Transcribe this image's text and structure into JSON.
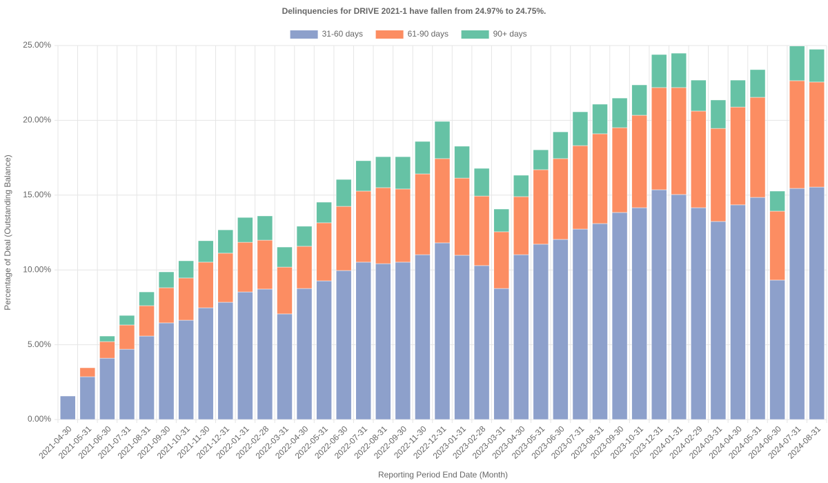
{
  "chart_data": {
    "type": "stacked_bar",
    "title": "Delinquencies for DRIVE 2021-1 have fallen from 24.97% to 24.75%.",
    "x_label": "Reporting Period End Date (Month)",
    "y_label": "Percentage of Deal (Outstanding Balance)",
    "categories": [
      "2021-04-30",
      "2021-05-31",
      "2021-06-30",
      "2021-07-31",
      "2021-08-31",
      "2021-09-30",
      "2021-10-31",
      "2021-11-30",
      "2021-12-31",
      "2022-01-31",
      "2022-02-28",
      "2022-03-31",
      "2022-04-30",
      "2022-05-31",
      "2022-06-30",
      "2022-07-31",
      "2022-08-31",
      "2022-09-30",
      "2022-11-30",
      "2022-12-31",
      "2023-01-31",
      "2023-02-28",
      "2023-03-31",
      "2023-04-30",
      "2023-05-31",
      "2023-06-30",
      "2023-07-31",
      "2023-08-31",
      "2023-09-30",
      "2023-10-31",
      "2023-12-31",
      "2024-01-31",
      "2024-02-29",
      "2024-03-31",
      "2024-04-30",
      "2024-05-31",
      "2024-06-30",
      "2024-07-31",
      "2024-08-31"
    ],
    "series": [
      {
        "name": "31-60 days",
        "color": "#8da0cb",
        "values": [
          1.57,
          2.86,
          4.1,
          4.7,
          5.58,
          6.46,
          6.64,
          7.47,
          7.84,
          8.53,
          8.72,
          7.06,
          8.76,
          9.27,
          9.96,
          10.52,
          10.42,
          10.52,
          11.02,
          11.81,
          10.98,
          10.29,
          8.76,
          11.02,
          11.72,
          12.04,
          12.73,
          13.1,
          13.84,
          14.16,
          15.36,
          15.04,
          14.16,
          13.24,
          14.35,
          14.85,
          9.32,
          15.45,
          15.54
        ]
      },
      {
        "name": "61-90 days",
        "color": "#fc8d62",
        "values": [
          0,
          0.6,
          1.11,
          1.62,
          2.03,
          2.35,
          2.82,
          3.05,
          3.28,
          3.32,
          3.27,
          3.13,
          2.82,
          3.88,
          4.29,
          4.75,
          5.08,
          4.89,
          5.4,
          5.63,
          5.16,
          4.65,
          3.79,
          3.88,
          4.98,
          5.4,
          5.58,
          6.0,
          5.67,
          6.18,
          6.83,
          7.15,
          6.46,
          6.22,
          6.54,
          6.69,
          4.61,
          7.2,
          7.02
        ]
      },
      {
        "name": "90+ days",
        "color": "#66c2a5",
        "values": [
          0,
          0,
          0.37,
          0.64,
          0.92,
          1.06,
          1.15,
          1.43,
          1.56,
          1.66,
          1.62,
          1.34,
          1.34,
          1.38,
          1.8,
          2.03,
          2.07,
          2.16,
          2.17,
          2.49,
          2.13,
          1.85,
          1.52,
          1.43,
          1.33,
          1.79,
          2.26,
          1.98,
          1.98,
          2.03,
          2.21,
          2.3,
          2.07,
          1.9,
          1.8,
          1.85,
          1.34,
          2.32,
          2.19
        ]
      }
    ],
    "ylim": [
      0,
      25
    ],
    "yticks": [
      {
        "value": 0,
        "label": "0.00%"
      },
      {
        "value": 5,
        "label": "5.00%"
      },
      {
        "value": 10,
        "label": "10.00%"
      },
      {
        "value": 15,
        "label": "15.00%"
      },
      {
        "value": 20,
        "label": "20.00%"
      },
      {
        "value": 25,
        "label": "25.00%"
      }
    ],
    "grid": true,
    "legend": "top"
  }
}
